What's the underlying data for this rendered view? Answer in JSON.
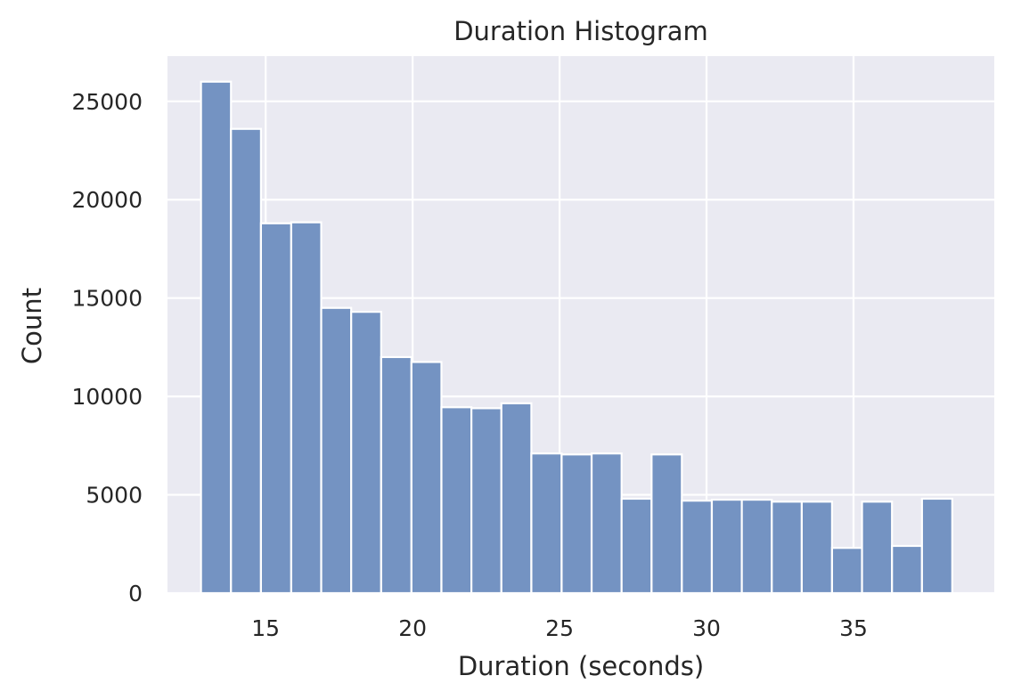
{
  "chart_data": {
    "type": "bar",
    "title": "Duration Histogram",
    "xlabel": "Duration (seconds)",
    "ylabel": "Count",
    "xlim": [
      11.66,
      39.79
    ],
    "ylim": [
      0,
      27300
    ],
    "xticks": [
      15,
      20,
      25,
      30,
      35
    ],
    "yticks": [
      0,
      5000,
      10000,
      15000,
      20000,
      25000
    ],
    "grid": true,
    "bin_start": 12.8,
    "bin_width": 1.0222,
    "bins": [
      {
        "x0": 12.8,
        "x1": 13.82,
        "count": 26000
      },
      {
        "x0": 13.82,
        "x1": 14.84,
        "count": 23600
      },
      {
        "x0": 14.84,
        "x1": 15.87,
        "count": 18800
      },
      {
        "x0": 15.87,
        "x1": 16.89,
        "count": 18850
      },
      {
        "x0": 16.89,
        "x1": 17.91,
        "count": 14500
      },
      {
        "x0": 17.91,
        "x1": 18.93,
        "count": 14300
      },
      {
        "x0": 18.93,
        "x1": 19.96,
        "count": 12000
      },
      {
        "x0": 19.96,
        "x1": 20.98,
        "count": 11750
      },
      {
        "x0": 20.98,
        "x1": 22.0,
        "count": 9450
      },
      {
        "x0": 22.0,
        "x1": 23.02,
        "count": 9400
      },
      {
        "x0": 23.02,
        "x1": 24.04,
        "count": 9650
      },
      {
        "x0": 24.04,
        "x1": 25.07,
        "count": 7100
      },
      {
        "x0": 25.07,
        "x1": 26.09,
        "count": 7050
      },
      {
        "x0": 26.09,
        "x1": 27.11,
        "count": 7100
      },
      {
        "x0": 27.11,
        "x1": 28.13,
        "count": 4800
      },
      {
        "x0": 28.13,
        "x1": 29.16,
        "count": 7050
      },
      {
        "x0": 29.16,
        "x1": 30.18,
        "count": 4700
      },
      {
        "x0": 30.18,
        "x1": 31.2,
        "count": 4750
      },
      {
        "x0": 31.2,
        "x1": 32.22,
        "count": 4750
      },
      {
        "x0": 32.22,
        "x1": 33.24,
        "count": 4650
      },
      {
        "x0": 33.24,
        "x1": 34.27,
        "count": 4650
      },
      {
        "x0": 34.27,
        "x1": 35.29,
        "count": 2300
      },
      {
        "x0": 35.29,
        "x1": 36.31,
        "count": 4650
      },
      {
        "x0": 36.31,
        "x1": 37.33,
        "count": 2400
      },
      {
        "x0": 37.33,
        "x1": 38.36,
        "count": 4800
      }
    ],
    "colors": {
      "bar": "#7493c2",
      "plot_bg": "#eaeaf2",
      "grid": "#ffffff",
      "text": "#262626"
    }
  }
}
